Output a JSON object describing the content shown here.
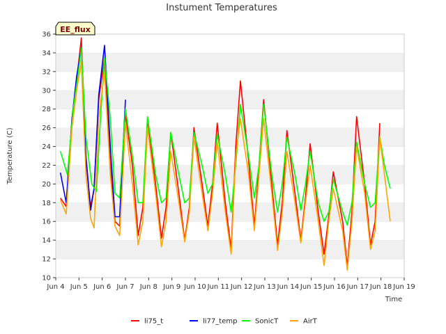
{
  "chart_data": {
    "type": "line",
    "title": "Instument Temperatures",
    "xlabel": "Time",
    "ylabel": "Temperature (C)",
    "badge": "EE_flux",
    "ylim": [
      10,
      36
    ],
    "yticks": [
      10,
      12,
      14,
      16,
      18,
      20,
      22,
      24,
      26,
      28,
      30,
      32,
      34,
      36
    ],
    "xlim": [
      4,
      19
    ],
    "xticks": [
      4,
      5,
      6,
      7,
      8,
      9,
      10,
      11,
      12,
      13,
      14,
      15,
      16,
      17,
      18,
      19
    ],
    "xtick_labels": [
      "Jun 4",
      "Jun 5",
      "Jun 6",
      "Jun 7",
      "Jun 8",
      "Jun 9",
      "Jun 10",
      "Jun 11",
      "Jun 12",
      "Jun 13",
      "Jun 14",
      "Jun 15",
      "Jun 16",
      "Jun 17",
      "Jun 18",
      "Jun 19"
    ],
    "grid": "horizontal bands",
    "legend_position": "bottom",
    "series": [
      {
        "name": "li75_t",
        "color": "#ff0000",
        "x": [
          4.2,
          4.45,
          4.7,
          4.9,
          5.1,
          5.3,
          5.5,
          5.65,
          5.85,
          6.1,
          6.35,
          6.55,
          6.75,
          7.0,
          7.3,
          7.55,
          7.75,
          7.95,
          8.3,
          8.55,
          8.75,
          8.95,
          9.3,
          9.55,
          9.75,
          9.95,
          10.3,
          10.55,
          10.75,
          10.95,
          11.3,
          11.55,
          11.75,
          11.95,
          12.3,
          12.55,
          12.75,
          12.95,
          13.3,
          13.55,
          13.75,
          13.95,
          14.3,
          14.55,
          14.75,
          14.95,
          15.3,
          15.55,
          15.75,
          15.95,
          16.35,
          16.55,
          16.75,
          16.95,
          17.3,
          17.55,
          17.75,
          17.95
        ],
        "y": [
          18.5,
          17.6,
          27,
          31,
          35.6,
          22.5,
          17.6,
          19.5,
          29,
          33.5,
          22,
          16,
          15.5,
          27.5,
          22,
          14.5,
          17.5,
          27,
          20,
          14.2,
          17.5,
          25.5,
          19,
          14,
          17.5,
          26,
          20,
          15.5,
          20,
          26.5,
          18,
          13,
          24,
          31,
          22.5,
          15.5,
          22,
          29,
          20,
          13.5,
          18,
          25.7,
          19,
          14,
          18.5,
          24.3,
          17,
          12.5,
          16.5,
          21.3,
          16,
          11.2,
          17,
          27.2,
          20,
          13.5,
          16,
          26.5
        ]
      },
      {
        "name": "li77_temp",
        "color": "#0000ff",
        "x": [
          4.2,
          4.45,
          4.7,
          4.9,
          5.1,
          5.3,
          5.5,
          5.65,
          5.85,
          6.1,
          6.35,
          6.55,
          6.75,
          7.0
        ],
        "y": [
          21.2,
          18,
          27,
          31.5,
          34.5,
          23,
          17.2,
          19.5,
          29.5,
          34.8,
          24,
          16.5,
          16.5,
          29
        ]
      },
      {
        "name": "SonicT",
        "color": "#00ff00",
        "x": [
          4.2,
          4.5,
          4.75,
          4.95,
          5.1,
          5.3,
          5.55,
          5.75,
          5.95,
          6.1,
          6.35,
          6.55,
          6.75,
          7.0,
          7.3,
          7.55,
          7.75,
          7.95,
          8.3,
          8.55,
          8.75,
          8.95,
          9.3,
          9.55,
          9.75,
          9.95,
          10.3,
          10.55,
          10.75,
          10.95,
          11.3,
          11.55,
          11.75,
          11.95,
          12.3,
          12.55,
          12.75,
          12.95,
          13.3,
          13.55,
          13.75,
          13.95,
          14.3,
          14.55,
          14.75,
          14.95,
          15.3,
          15.55,
          15.75,
          15.95,
          16.35,
          16.55,
          16.75,
          16.95,
          17.3,
          17.55,
          17.75,
          17.95,
          18.15,
          18.4
        ],
        "y": [
          23.5,
          21,
          28,
          31.5,
          34.5,
          25,
          20,
          19.2,
          28,
          33.5,
          27,
          19,
          18.5,
          28,
          23,
          18,
          18,
          27.2,
          21,
          18,
          18.5,
          25.5,
          21,
          18,
          18.5,
          25.5,
          22,
          19,
          20,
          25.3,
          21,
          17,
          22,
          28.5,
          23,
          18.5,
          22,
          28.5,
          21,
          17,
          20,
          25,
          21,
          17.2,
          20,
          23.5,
          18,
          16,
          17,
          20.5,
          17,
          15.6,
          18,
          24.5,
          20,
          17.5,
          18,
          25,
          22,
          19.5
        ]
      },
      {
        "name": "AirT",
        "color": "#ffa500",
        "x": [
          4.2,
          4.45,
          4.7,
          4.9,
          5.1,
          5.3,
          5.5,
          5.65,
          5.85,
          6.1,
          6.35,
          6.55,
          6.75,
          7.0,
          7.3,
          7.55,
          7.75,
          7.95,
          8.3,
          8.55,
          8.75,
          8.95,
          9.3,
          9.55,
          9.75,
          9.95,
          10.3,
          10.55,
          10.75,
          10.95,
          11.3,
          11.55,
          11.75,
          11.95,
          12.3,
          12.55,
          12.75,
          12.95,
          13.3,
          13.55,
          13.75,
          13.95,
          14.3,
          14.55,
          14.75,
          14.95,
          15.3,
          15.55,
          15.75,
          15.95,
          16.35,
          16.55,
          16.75,
          16.95,
          17.3,
          17.55,
          17.75,
          17.95,
          18.15,
          18.4
        ],
        "y": [
          18.3,
          16.8,
          26,
          30,
          33,
          21,
          16.3,
          15.3,
          27,
          32,
          21,
          15.5,
          14.5,
          26.5,
          20,
          13.5,
          16,
          26,
          19,
          13.3,
          16,
          23.5,
          18,
          13.8,
          17,
          25,
          19,
          15,
          19,
          24.5,
          17,
          12.5,
          23,
          27,
          21,
          15,
          21,
          27,
          19,
          12.9,
          17,
          23.5,
          18,
          13.7,
          18,
          22,
          16,
          11.3,
          16,
          19.5,
          15,
          10.8,
          16,
          24,
          19,
          13,
          15,
          25,
          21,
          16
        ]
      }
    ]
  }
}
